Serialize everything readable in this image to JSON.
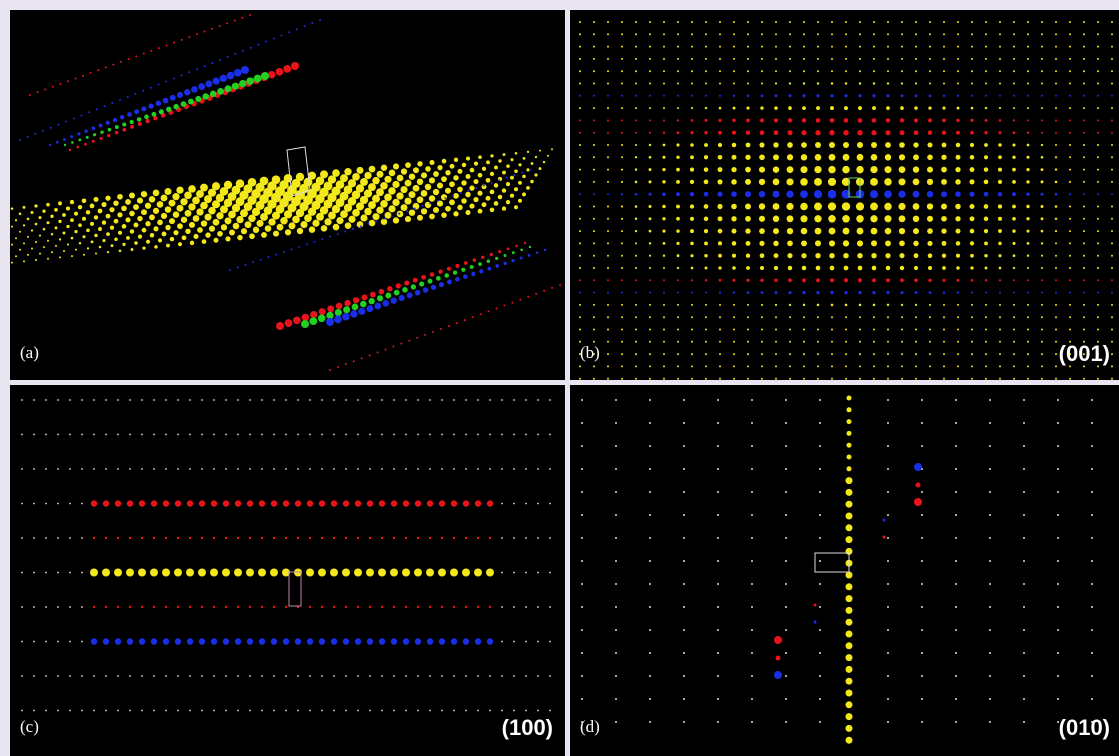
{
  "panels": [
    {
      "label": "(a)"
    },
    {
      "label": "(b)",
      "plane": "(001)"
    },
    {
      "label": "(c)",
      "plane": "(100)"
    },
    {
      "label": "(d)",
      "plane": "(010)"
    }
  ]
}
